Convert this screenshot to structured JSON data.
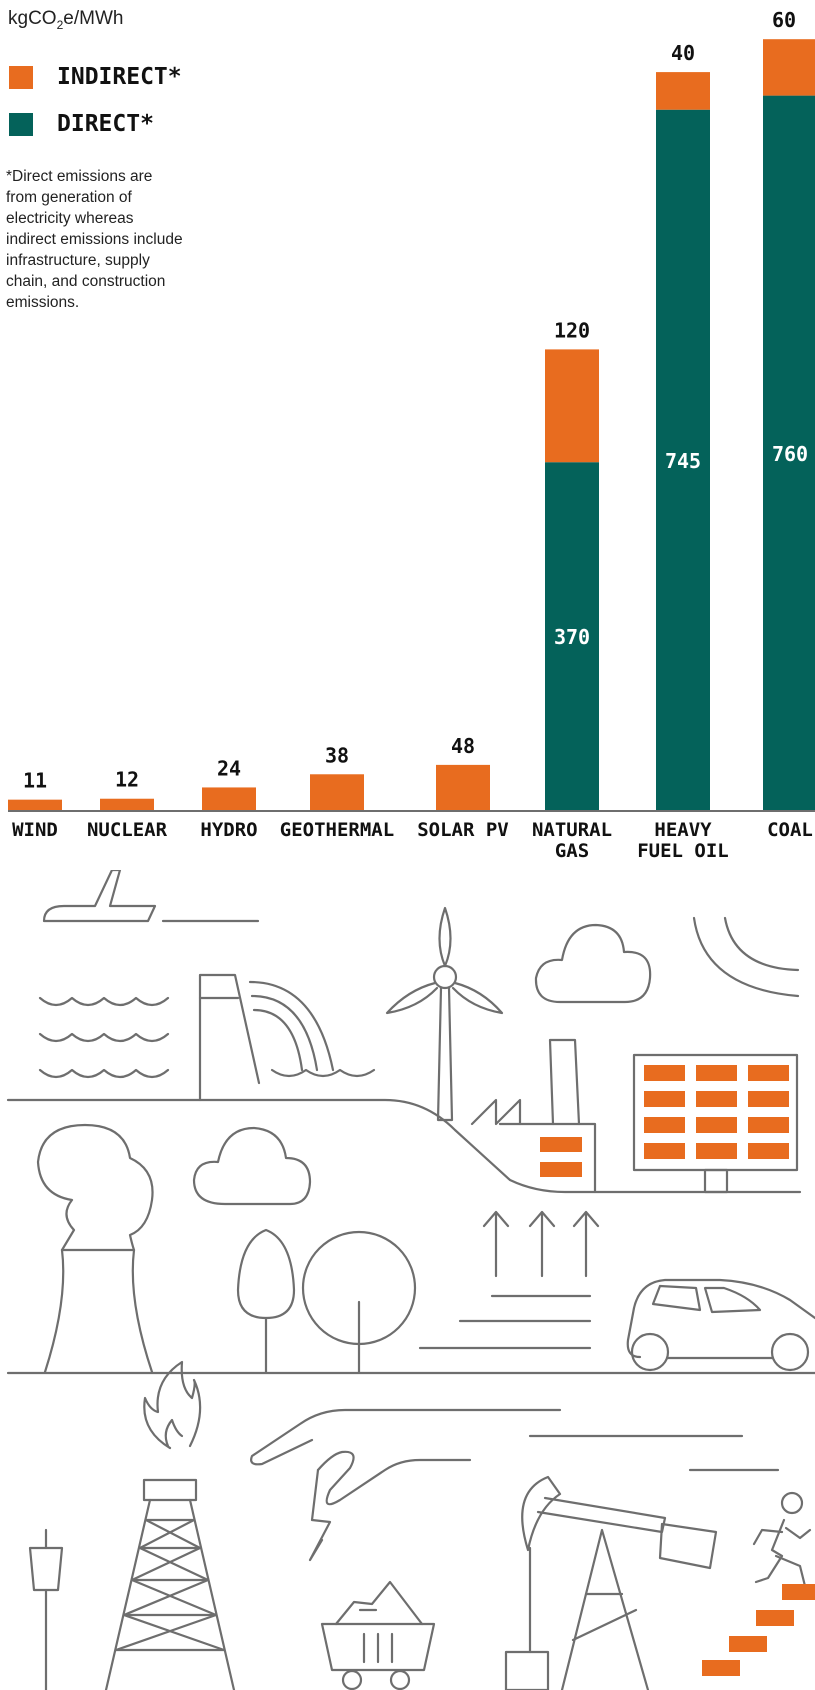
{
  "chart_data": {
    "type": "bar",
    "stacked": true,
    "ylabel": "kgCO2e/MWh",
    "categories": [
      "WIND",
      "NUCLEAR",
      "HYDRO",
      "GEOTHERMAL",
      "SOLAR PV",
      "NATURAL GAS",
      "HEAVY FUEL OIL",
      "COAL"
    ],
    "series": [
      {
        "name": "DIRECT*",
        "values": [
          0,
          0,
          0,
          0,
          0,
          370,
          745,
          760
        ],
        "color": "#04625a"
      },
      {
        "name": "INDIRECT*",
        "values": [
          11,
          12,
          24,
          38,
          48,
          120,
          40,
          60
        ],
        "color": "#e86c1f"
      }
    ],
    "ylim": [
      0,
      820
    ],
    "grid": false,
    "legend_placement": "top-left"
  },
  "header": {
    "unit_prefix": "kgCO",
    "unit_sub": "2",
    "unit_suffix": "e/MWh"
  },
  "legend": [
    {
      "label": "INDIRECT*",
      "color": "#e86c1f"
    },
    {
      "label": "DIRECT*",
      "color": "#04625a"
    }
  ],
  "footnote": "*Direct emissions are\n from generation of\n electricity whereas\n indirect emissions include\n infrastructure, supply\n chain, and construction\n emissions.",
  "illustration_icons": [
    "airplane-icon",
    "waves-icon",
    "dam-icon",
    "wind-turbine-icon",
    "cloud-icon",
    "factory-icon",
    "solar-panel-icon",
    "tree-icon",
    "cooling-tower-icon",
    "car-icon",
    "gas-flare-tower-icon",
    "hand-lightning-icon",
    "coal-cart-icon",
    "oil-pumpjack-icon",
    "person-climbing-stairs-icon"
  ],
  "colors": {
    "accent": "#e86c1f",
    "direct": "#04625a",
    "line": "#6e6e6e"
  }
}
